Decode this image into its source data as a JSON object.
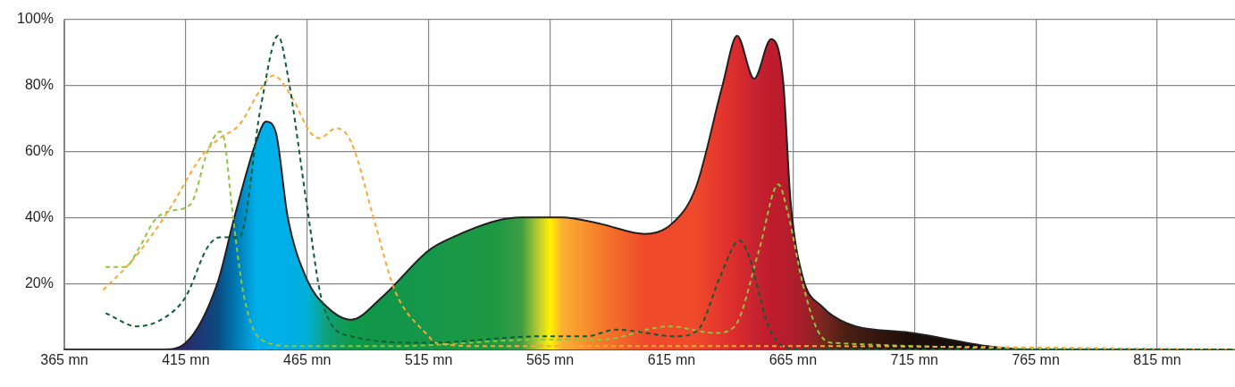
{
  "chart_data": {
    "type": "line",
    "xlim": [
      365,
      847
    ],
    "ylim": [
      0,
      100
    ],
    "xticks": [
      {
        "value": 365,
        "label": "365 mn"
      },
      {
        "value": 415,
        "label": "415 mn"
      },
      {
        "value": 465,
        "label": "465 mn"
      },
      {
        "value": 515,
        "label": "515 mn"
      },
      {
        "value": 565,
        "label": "565 mn"
      },
      {
        "value": 615,
        "label": "615 mn"
      },
      {
        "value": 665,
        "label": "665 mn"
      },
      {
        "value": 715,
        "label": "715 mn"
      },
      {
        "value": 765,
        "label": "765 mn"
      },
      {
        "value": 815,
        "label": "815 mn"
      }
    ],
    "yticks": [
      {
        "value": 0,
        "label": null
      },
      {
        "value": 20,
        "label": "20%"
      },
      {
        "value": 40,
        "label": "40%"
      },
      {
        "value": 60,
        "label": "60%"
      },
      {
        "value": 80,
        "label": "80%"
      },
      {
        "value": 100,
        "label": "100%"
      }
    ],
    "grid": true,
    "legend": false,
    "marker": "none",
    "series": [
      {
        "type": "area",
        "color": "#231f20",
        "x": [
          365,
          406,
          415,
          428,
          435,
          444,
          448,
          452,
          457,
          465,
          473,
          483,
          496,
          515,
          525,
          543,
          553,
          561,
          565,
          570,
          586,
          604,
          615,
          625,
          636,
          642,
          649,
          656,
          661,
          664,
          669,
          677,
          687,
          714,
          762,
          847
        ],
        "values": [
          0,
          0,
          2,
          20,
          40,
          63,
          69,
          66,
          40,
          21,
          13,
          9,
          16,
          30,
          34,
          39,
          40,
          40,
          40,
          40,
          38,
          35,
          38,
          49,
          80,
          95,
          82,
          94,
          81,
          45,
          22,
          13,
          8,
          5,
          0,
          0
        ],
        "colors": [
          "#2b2a6b",
          "#2b2a6b",
          "#2b2a6b",
          "#0b4a80",
          "#0075b0",
          "#00aee8",
          "#00aee8",
          "#00aee8",
          "#00aee8",
          "#00b0d8",
          "#10a07a",
          "#0f9a4a",
          "#12964a",
          "#15974a",
          "#1a9846",
          "#1e9944",
          "#3c9c44",
          "#c6d12e",
          "#fff200",
          "#fbb034",
          "#f47b2a",
          "#ef4a2b",
          "#ef4a2b",
          "#ee4a2b",
          "#e2352c",
          "#d92b2c",
          "#c82430",
          "#be1c2d",
          "#ba1c2c",
          "#b01e2c",
          "#a61f2a",
          "#7a2620",
          "#4a1f14",
          "#1c0d08",
          "#111111",
          "#111111"
        ]
      },
      {
        "type": "line",
        "line_style": "dashed",
        "color": "#0e5e35",
        "x": [
          382,
          395,
          407,
          415,
          424,
          429,
          437,
          446,
          453,
          457,
          465,
          471,
          483,
          514,
          562,
          580,
          592,
          617,
          626,
          635,
          643,
          647,
          654,
          659,
          668,
          847
        ],
        "values": [
          11,
          7,
          10,
          16,
          31,
          34,
          34,
          74,
          95,
          83,
          43,
          15,
          4,
          2,
          4,
          4,
          6,
          4,
          6,
          22,
          33,
          28,
          9,
          2,
          0,
          0
        ]
      },
      {
        "type": "line",
        "line_style": "dashed",
        "color": "#f7a933",
        "x": [
          381,
          393,
          407,
          422,
          429,
          437,
          446,
          451,
          459,
          466,
          470,
          477,
          483,
          493,
          501,
          515,
          518,
          537,
          669,
          847
        ],
        "values": [
          18,
          27,
          41,
          59,
          64,
          68,
          79,
          83,
          76,
          66,
          64,
          67,
          63,
          38,
          18,
          4,
          2,
          1,
          1,
          0
        ]
      },
      {
        "type": "line",
        "line_style": "dashed",
        "color": "#8dc63f",
        "x": [
          382,
          390,
          396,
          402,
          409,
          417,
          424,
          429,
          431,
          434,
          439,
          446,
          459,
          500,
          562,
          586,
          614,
          633,
          641,
          651,
          659,
          663,
          669,
          675,
          681,
          847
        ],
        "values": [
          25,
          25,
          31,
          39,
          42,
          44,
          60,
          66,
          63,
          43,
          16,
          3,
          1,
          1,
          3,
          3,
          7,
          5,
          7,
          30,
          50,
          41,
          20,
          6,
          2,
          0
        ]
      }
    ]
  }
}
